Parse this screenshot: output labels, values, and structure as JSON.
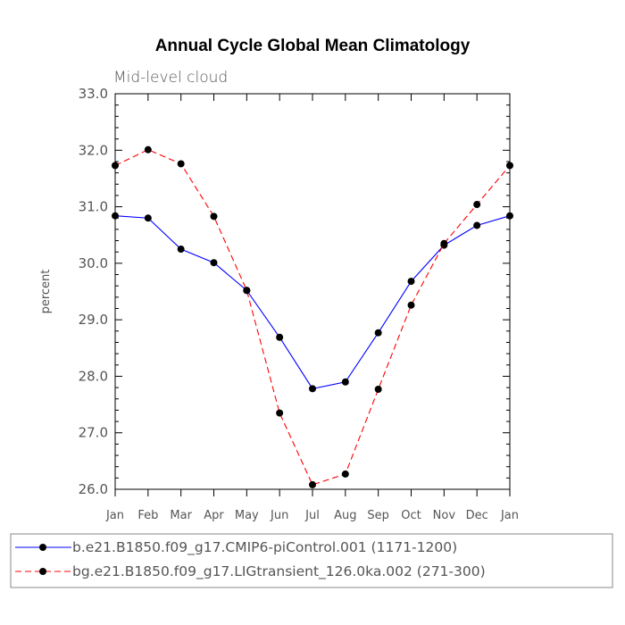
{
  "chart_data": {
    "type": "line",
    "title": "Annual Cycle Global Mean Climatology",
    "subtitle": "Mid-level cloud",
    "xlabel": "",
    "ylabel": "percent",
    "categories": [
      "Jan",
      "Feb",
      "Mar",
      "Apr",
      "May",
      "Jun",
      "Jul",
      "Aug",
      "Sep",
      "Oct",
      "Nov",
      "Dec",
      "Jan"
    ],
    "ylim": [
      26.0,
      33.0
    ],
    "yticks": [
      "26.0",
      "27.0",
      "28.0",
      "29.0",
      "30.0",
      "31.0",
      "32.0",
      "33.0"
    ],
    "grid": false,
    "legend_position": "bottom",
    "series": [
      {
        "name": "b.e21.B1850.f09_g17.CMIP6-piControl.001 (1171-1200)",
        "color": "#0000ff",
        "style": "solid",
        "values": [
          30.84,
          30.8,
          30.25,
          30.01,
          29.52,
          28.69,
          27.78,
          27.9,
          28.77,
          29.68,
          30.32,
          30.67,
          30.84
        ]
      },
      {
        "name": "bg.e21.B1850.f09_g17.LIGtransient_126.0ka.002 (271-300)",
        "color": "#ff0000",
        "style": "dashed",
        "values": [
          31.73,
          32.01,
          31.76,
          30.83,
          29.52,
          27.35,
          26.08,
          26.27,
          27.77,
          29.26,
          30.35,
          31.04,
          31.73
        ]
      }
    ]
  }
}
